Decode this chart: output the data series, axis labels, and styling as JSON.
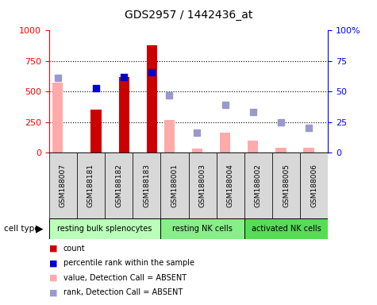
{
  "title": "GDS2957 / 1442436_at",
  "samples": [
    "GSM188007",
    "GSM188181",
    "GSM188182",
    "GSM188183",
    "GSM188001",
    "GSM188003",
    "GSM188004",
    "GSM188002",
    "GSM188005",
    "GSM188006"
  ],
  "cell_types": [
    {
      "label": "resting bulk splenocytes",
      "start": 0,
      "end": 4,
      "color": "#bbffbb"
    },
    {
      "label": "resting NK cells",
      "start": 4,
      "end": 7,
      "color": "#88ee88"
    },
    {
      "label": "activated NK cells",
      "start": 7,
      "end": 10,
      "color": "#55dd55"
    }
  ],
  "count_present": [
    null,
    350,
    620,
    880,
    null,
    null,
    null,
    null,
    null,
    null
  ],
  "rank_present": [
    null,
    53,
    62,
    66,
    null,
    null,
    null,
    null,
    null,
    null
  ],
  "value_absent": [
    570,
    null,
    null,
    null,
    265,
    30,
    165,
    100,
    40,
    40
  ],
  "rank_absent": [
    61,
    null,
    null,
    null,
    47,
    16.5,
    39,
    33.5,
    24.5,
    20
  ],
  "ylim_left": [
    0,
    1000
  ],
  "ylim_right": [
    0,
    100
  ],
  "yticks_left": [
    0,
    250,
    500,
    750,
    1000
  ],
  "yticks_right": [
    0,
    25,
    50,
    75,
    100
  ],
  "count_color": "#cc0000",
  "rank_color": "#0000cc",
  "value_absent_color": "#ffaaaa",
  "rank_absent_color": "#9999cc",
  "bar_width": 0.38,
  "marker_size": 6,
  "legend_items": [
    {
      "color": "#cc0000",
      "label": "count"
    },
    {
      "color": "#0000cc",
      "label": "percentile rank within the sample"
    },
    {
      "color": "#ffaaaa",
      "label": "value, Detection Call = ABSENT"
    },
    {
      "color": "#9999cc",
      "label": "rank, Detection Call = ABSENT"
    }
  ]
}
